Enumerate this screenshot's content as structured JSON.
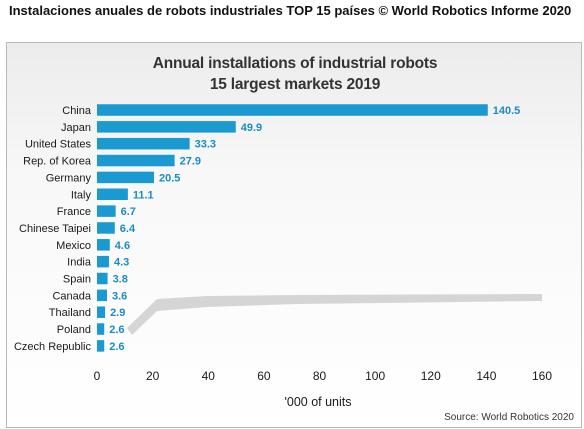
{
  "page_heading": "Instalaciones anuales de robots industriales TOP 15 países © World Robotics Informe 2020",
  "chart_data": {
    "type": "bar",
    "orientation": "horizontal",
    "title": "Annual installations of industrial robots",
    "subtitle": "15 largest markets 2019",
    "xlabel": "'000 of units",
    "ylabel": "",
    "xlim": [
      0,
      160
    ],
    "xticks": [
      "0",
      "20",
      "40",
      "60",
      "80",
      "100",
      "120",
      "140",
      "160"
    ],
    "grid": false,
    "categories": [
      "China",
      "Japan",
      "United States",
      "Rep. of Korea",
      "Germany",
      "Italy",
      "France",
      "Chinese Taipei",
      "Mexico",
      "India",
      "Spain",
      "Canada",
      "Thailand",
      "Poland",
      "Czech Republic"
    ],
    "values": [
      140.5,
      49.9,
      33.3,
      27.9,
      20.5,
      11.1,
      6.7,
      6.4,
      4.6,
      4.3,
      3.8,
      3.6,
      2.9,
      2.6,
      2.6
    ],
    "value_labels": [
      "140.5",
      "49.9",
      "33.3",
      "27.9",
      "20.5",
      "11.1",
      "6.7",
      "6.4",
      "4.6",
      "4.3",
      "3.8",
      "3.6",
      "2.9",
      "2.6",
      "2.6"
    ],
    "source": "Source: World Robotics 2020",
    "colors": {
      "bar": "#1a9ad1",
      "value_label": "#1a8cc4",
      "text": "#1a1a1a"
    }
  }
}
